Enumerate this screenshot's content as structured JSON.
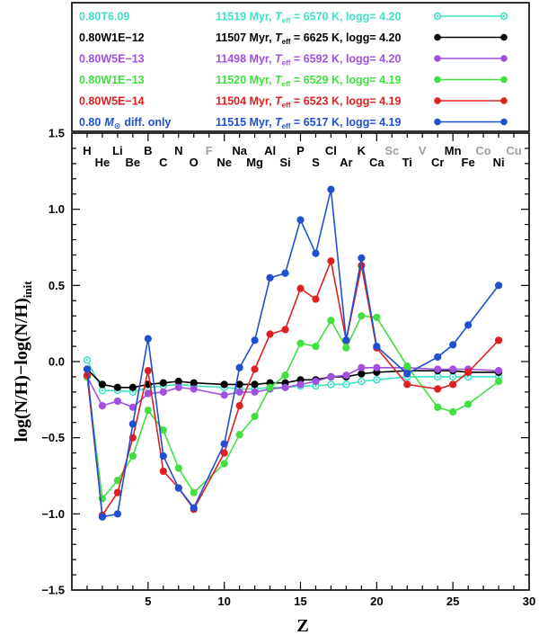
{
  "chart_data": {
    "type": "line",
    "xlabel": "Z",
    "ylabel": "log(N/H)−log(N/H)",
    "ylabel_sub": "init",
    "xlim": [
      0,
      30
    ],
    "ylim": [
      -1.5,
      1.5
    ],
    "x_ticks": [
      5,
      10,
      15,
      20,
      25,
      30
    ],
    "y_ticks": [
      -1.5,
      -1.0,
      -0.5,
      0.0,
      0.5,
      1.0,
      1.5
    ],
    "y_tick_labels": [
      "−1.5",
      "−1.0",
      "−0.5",
      "0.0",
      "0.5",
      "1.0",
      "1.5"
    ],
    "elements": [
      {
        "z": 1,
        "symbol": "H",
        "row": 0,
        "color": "#000000"
      },
      {
        "z": 2,
        "symbol": "He",
        "row": 1,
        "color": "#000000"
      },
      {
        "z": 3,
        "symbol": "Li",
        "row": 0,
        "color": "#000000"
      },
      {
        "z": 4,
        "symbol": "Be",
        "row": 1,
        "color": "#000000"
      },
      {
        "z": 5,
        "symbol": "B",
        "row": 0,
        "color": "#000000"
      },
      {
        "z": 6,
        "symbol": "C",
        "row": 1,
        "color": "#000000"
      },
      {
        "z": 7,
        "symbol": "N",
        "row": 0,
        "color": "#000000"
      },
      {
        "z": 8,
        "symbol": "O",
        "row": 1,
        "color": "#000000"
      },
      {
        "z": 9,
        "symbol": "F",
        "row": 0,
        "color": "#a0a0a0"
      },
      {
        "z": 10,
        "symbol": "Ne",
        "row": 1,
        "color": "#000000"
      },
      {
        "z": 11,
        "symbol": "Na",
        "row": 0,
        "color": "#000000"
      },
      {
        "z": 12,
        "symbol": "Mg",
        "row": 1,
        "color": "#000000"
      },
      {
        "z": 13,
        "symbol": "Al",
        "row": 0,
        "color": "#000000"
      },
      {
        "z": 14,
        "symbol": "Si",
        "row": 1,
        "color": "#000000"
      },
      {
        "z": 15,
        "symbol": "P",
        "row": 0,
        "color": "#000000"
      },
      {
        "z": 16,
        "symbol": "S",
        "row": 1,
        "color": "#000000"
      },
      {
        "z": 17,
        "symbol": "Cl",
        "row": 0,
        "color": "#000000"
      },
      {
        "z": 18,
        "symbol": "Ar",
        "row": 1,
        "color": "#000000"
      },
      {
        "z": 19,
        "symbol": "K",
        "row": 0,
        "color": "#000000"
      },
      {
        "z": 20,
        "symbol": "Ca",
        "row": 1,
        "color": "#000000"
      },
      {
        "z": 21,
        "symbol": "Sc",
        "row": 0,
        "color": "#a0a0a0"
      },
      {
        "z": 22,
        "symbol": "Ti",
        "row": 1,
        "color": "#000000"
      },
      {
        "z": 23,
        "symbol": "V",
        "row": 0,
        "color": "#a0a0a0"
      },
      {
        "z": 24,
        "symbol": "Cr",
        "row": 1,
        "color": "#000000"
      },
      {
        "z": 25,
        "symbol": "Mn",
        "row": 0,
        "color": "#000000"
      },
      {
        "z": 26,
        "symbol": "Fe",
        "row": 1,
        "color": "#000000"
      },
      {
        "z": 27,
        "symbol": "Co",
        "row": 0,
        "color": "#a0a0a0"
      },
      {
        "z": 28,
        "symbol": "Ni",
        "row": 1,
        "color": "#000000"
      },
      {
        "z": 29,
        "symbol": "Cu",
        "row": 0,
        "color": "#a0a0a0"
      }
    ],
    "series": [
      {
        "name": "0.80T6.09",
        "age": "11519 Myr,",
        "teff_value": "6570 K,",
        "logg": "logg= 4.20",
        "color": "#40e0c8",
        "marker": "ring",
        "x": [
          1,
          2,
          3,
          4,
          5,
          6,
          7,
          8,
          10,
          11,
          12,
          13,
          14,
          15,
          16,
          17,
          18,
          19,
          20,
          22,
          24,
          25,
          26,
          28
        ],
        "y": [
          0.01,
          -0.19,
          -0.19,
          -0.2,
          -0.17,
          -0.16,
          -0.15,
          -0.16,
          -0.17,
          -0.18,
          -0.18,
          -0.17,
          -0.17,
          -0.16,
          -0.16,
          -0.15,
          -0.15,
          -0.13,
          -0.12,
          -0.1,
          -0.1,
          -0.1,
          -0.1,
          -0.1
        ]
      },
      {
        "name": "0.80W1E−12",
        "age": "11507 Myr,",
        "teff_value": "6625 K,",
        "logg": "logg= 4.20",
        "color": "#000000",
        "marker": "filled",
        "x": [
          1,
          2,
          3,
          4,
          5,
          6,
          7,
          8,
          10,
          11,
          12,
          13,
          14,
          15,
          16,
          17,
          18,
          19,
          20,
          22,
          24,
          25,
          26,
          28
        ],
        "y": [
          -0.05,
          -0.15,
          -0.17,
          -0.17,
          -0.15,
          -0.14,
          -0.13,
          -0.14,
          -0.15,
          -0.15,
          -0.15,
          -0.14,
          -0.14,
          -0.12,
          -0.12,
          -0.1,
          -0.1,
          -0.08,
          -0.07,
          -0.06,
          -0.06,
          -0.06,
          -0.07,
          -0.07
        ]
      },
      {
        "name": "0.80W5E−13",
        "age": "11498 Myr,",
        "teff_value": "6592 K,",
        "logg": "logg= 4.20",
        "color": "#a050e0",
        "marker": "filled",
        "x": [
          1,
          2,
          3,
          4,
          5,
          6,
          7,
          8,
          10,
          11,
          12,
          13,
          14,
          15,
          16,
          17,
          18,
          19,
          20,
          22,
          24,
          25,
          26,
          28
        ],
        "y": [
          -0.1,
          -0.29,
          -0.26,
          -0.3,
          -0.21,
          -0.2,
          -0.17,
          -0.18,
          -0.22,
          -0.2,
          -0.2,
          -0.18,
          -0.17,
          -0.15,
          -0.13,
          -0.1,
          -0.09,
          -0.04,
          -0.04,
          -0.04,
          -0.05,
          -0.05,
          -0.05,
          -0.06
        ]
      },
      {
        "name": "0.80W1E−13",
        "age": "11520 Myr,",
        "teff_value": "6529 K,",
        "logg": "logg= 4.19",
        "color": "#40e040",
        "marker": "filled",
        "x": [
          1,
          2,
          3,
          4,
          5,
          6,
          7,
          8,
          10,
          11,
          12,
          13,
          14,
          15,
          16,
          17,
          18,
          19,
          20,
          22,
          24,
          25,
          26,
          28
        ],
        "y": [
          -0.1,
          -0.9,
          -0.78,
          -0.62,
          -0.32,
          -0.45,
          -0.7,
          -0.86,
          -0.67,
          -0.48,
          -0.36,
          -0.17,
          -0.09,
          0.12,
          0.1,
          0.27,
          0.09,
          0.3,
          0.29,
          -0.03,
          -0.3,
          -0.33,
          -0.28,
          -0.13
        ]
      },
      {
        "name": "0.80W5E−14",
        "age": "11504 Myr,",
        "teff_value": "6523 K,",
        "logg": "logg= 4.19",
        "color": "#e02020",
        "marker": "filled",
        "x": [
          1,
          2,
          3,
          4,
          5,
          6,
          7,
          8,
          10,
          11,
          12,
          13,
          14,
          15,
          16,
          17,
          18,
          19,
          20,
          22,
          24,
          25,
          26,
          28
        ],
        "y": [
          -0.09,
          -1.01,
          -0.86,
          -0.5,
          -0.06,
          -0.72,
          -0.83,
          -0.97,
          -0.6,
          -0.29,
          -0.05,
          0.18,
          0.21,
          0.48,
          0.41,
          0.66,
          0.14,
          0.63,
          0.09,
          -0.15,
          -0.18,
          -0.15,
          -0.07,
          0.14
        ]
      },
      {
        "name": "0.80",
        "name_suffix": "diff. only",
        "age": "11515 Myr,",
        "teff_value": "6517 K,",
        "logg": "logg= 4.19",
        "color": "#2050d0",
        "marker": "filled",
        "x": [
          1,
          2,
          3,
          4,
          5,
          6,
          7,
          8,
          10,
          11,
          12,
          13,
          14,
          15,
          16,
          17,
          18,
          19,
          20,
          22,
          24,
          25,
          26,
          28
        ],
        "y": [
          -0.05,
          -1.02,
          -1.0,
          -0.41,
          0.15,
          -0.62,
          -0.83,
          -0.96,
          -0.54,
          -0.04,
          0.14,
          0.55,
          0.58,
          0.93,
          0.71,
          1.13,
          0.14,
          0.68,
          0.1,
          -0.08,
          0.03,
          0.11,
          0.24,
          0.5
        ]
      }
    ]
  }
}
